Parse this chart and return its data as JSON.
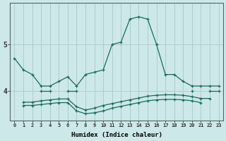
{
  "xlabel": "Humidex (Indice chaleur)",
  "background_color": "#cce8e8",
  "grid_color": "#b0cccc",
  "line_color": "#1a6b5e",
  "x_values": [
    0,
    1,
    2,
    3,
    4,
    5,
    6,
    7,
    8,
    9,
    10,
    11,
    12,
    13,
    14,
    15,
    16,
    17,
    18,
    19,
    20,
    21,
    22,
    23
  ],
  "series1": [
    4.7,
    4.45,
    4.35,
    4.1,
    4.1,
    4.2,
    4.3,
    4.1,
    4.35,
    4.4,
    4.45,
    5.0,
    5.05,
    5.55,
    5.6,
    5.55,
    5.0,
    4.35,
    4.35,
    4.2,
    4.1,
    4.1,
    4.1,
    4.1
  ],
  "series2": [
    null,
    null,
    null,
    4.0,
    4.0,
    null,
    4.0,
    4.0,
    null,
    null,
    null,
    null,
    null,
    null,
    null,
    null,
    null,
    null,
    null,
    null,
    4.0,
    null,
    4.0,
    4.0
  ],
  "series3": [
    null,
    3.75,
    3.75,
    3.78,
    3.8,
    3.82,
    3.82,
    3.65,
    3.58,
    3.62,
    3.68,
    3.72,
    3.76,
    3.8,
    3.84,
    3.88,
    3.9,
    3.91,
    3.91,
    3.9,
    3.87,
    3.83,
    3.83,
    null
  ],
  "series4": [
    null,
    3.68,
    3.68,
    3.7,
    3.72,
    3.74,
    3.74,
    3.56,
    3.5,
    3.52,
    3.56,
    3.62,
    3.66,
    3.7,
    3.74,
    3.78,
    3.8,
    3.81,
    3.81,
    3.8,
    3.78,
    3.74,
    null,
    null
  ],
  "ylim": [
    3.35,
    5.9
  ],
  "yticks": [
    4,
    5
  ],
  "xlim": [
    -0.5,
    23.5
  ]
}
